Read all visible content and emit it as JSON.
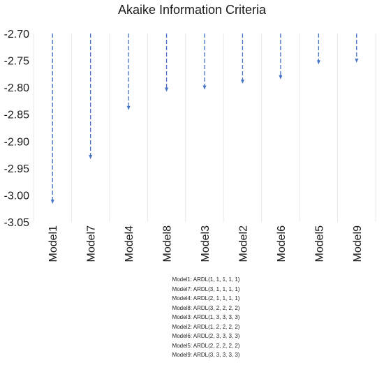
{
  "chart_data": {
    "type": "bar",
    "title": "Akaike Information Criteria",
    "categories": [
      "Model1",
      "Model7",
      "Model4",
      "Model8",
      "Model3",
      "Model2",
      "Model6",
      "Model5",
      "Model9"
    ],
    "values": [
      -3.015,
      -2.932,
      -2.841,
      -2.807,
      -2.803,
      -2.792,
      -2.784,
      -2.756,
      -2.753
    ],
    "baseline": -2.7,
    "ylim": [
      -3.05,
      -2.7
    ],
    "yticks": [
      "-2.70",
      "-2.75",
      "-2.80",
      "-2.85",
      "-2.90",
      "-2.95",
      "-3.00",
      "-3.05"
    ],
    "grid": true,
    "color": "#4472C4",
    "style": "dashed arrows from -2.70 down to value"
  },
  "notes": [
    "Model1: ARDL(1, 1, 1, 1, 1)",
    "Model7: ARDL(3, 1, 1, 1, 1)",
    "Model4: ARDL(2, 1, 1, 1, 1)",
    "Model8: ARDL(3, 2, 2, 2, 2)",
    "Model3: ARDL(1, 3, 3, 3, 3)",
    "Model2: ARDL(1, 2, 2, 2, 2)",
    "Model6: ARDL(2, 3, 3, 3, 3)",
    "Model5: ARDL(2, 2, 2, 2, 2)",
    "Model9: ARDL(3, 3, 3, 3, 3)"
  ]
}
